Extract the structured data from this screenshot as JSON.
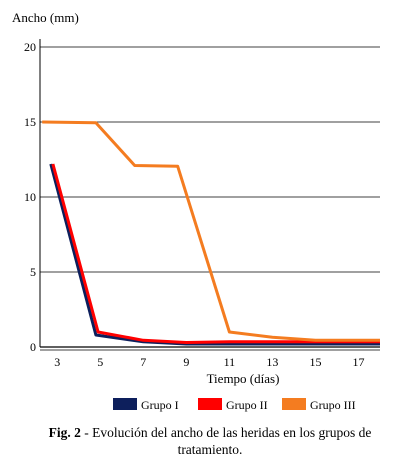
{
  "chart_data": {
    "type": "line",
    "ylabel": "Ancho (mm)",
    "xlabel": "Tiempo (días)",
    "x": [
      3,
      5,
      7,
      9,
      11,
      13,
      15,
      17
    ],
    "x_ticks": [
      "3",
      "5",
      "7",
      "9",
      "11",
      "13",
      "15",
      "17"
    ],
    "y_ticks": [
      "0",
      "5",
      "10",
      "15",
      "20"
    ],
    "xlim": [
      2.2,
      18
    ],
    "ylim": [
      0,
      20
    ],
    "grid": "horizontal",
    "legend_position": "bottom",
    "series": [
      {
        "name": "Grupo I",
        "color": "#0d1f5c",
        "points": [
          [
            2.7,
            12.2
          ],
          [
            4.8,
            0.8
          ],
          [
            7,
            0.35
          ],
          [
            9,
            0.2
          ],
          [
            11,
            0.2
          ],
          [
            13,
            0.2
          ],
          [
            15,
            0.2
          ],
          [
            18,
            0.2
          ]
        ]
      },
      {
        "name": "Grupo II",
        "color": "#ff0000",
        "points": [
          [
            2.8,
            12.2
          ],
          [
            4.9,
            1.0
          ],
          [
            7,
            0.45
          ],
          [
            9,
            0.3
          ],
          [
            11,
            0.35
          ],
          [
            13,
            0.35
          ],
          [
            15,
            0.35
          ],
          [
            18,
            0.35
          ]
        ]
      },
      {
        "name": "Grupo III",
        "color": "#f47c20",
        "points": [
          [
            2.3,
            15.0
          ],
          [
            4.8,
            14.95
          ],
          [
            6.6,
            12.1
          ],
          [
            8.6,
            12.05
          ],
          [
            11,
            1.0
          ],
          [
            13,
            0.65
          ],
          [
            15,
            0.45
          ],
          [
            18,
            0.45
          ]
        ]
      }
    ]
  },
  "caption": {
    "label": "Fig. 2",
    "text": " - Evolución del ancho de las heridas en los grupos de tratamiento."
  }
}
